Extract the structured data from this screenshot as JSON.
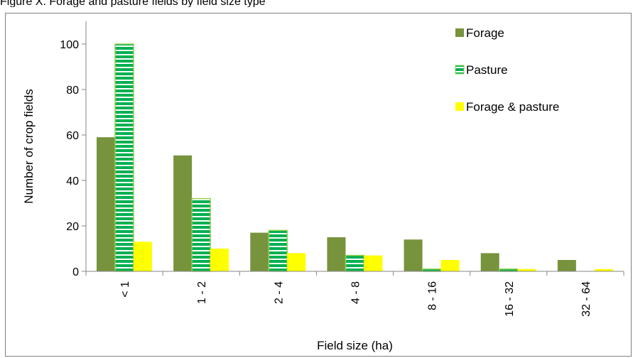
{
  "caption": "Figure X. Forage and pasture fields by field size type",
  "chart_data": {
    "type": "bar",
    "xlabel": "Field size (ha)",
    "ylabel": "Number of crop fields",
    "ylim": [
      0,
      110
    ],
    "yticks": [
      0,
      20,
      40,
      60,
      80,
      100
    ],
    "categories": [
      "< 1",
      "1 - 2",
      "2 - 4",
      "4 - 8",
      "8 - 16",
      "16 - 32",
      "32 - 64"
    ],
    "legend_position": "top-right",
    "grid": false,
    "series": [
      {
        "name": "Forage",
        "color": "#77933c",
        "values": [
          59,
          51,
          17,
          15,
          14,
          8,
          5
        ]
      },
      {
        "name": "Pasture",
        "color": "#00b050",
        "pattern": "horizontal-stripes",
        "border": "#92d050",
        "values": [
          100,
          32,
          18,
          7,
          1,
          1,
          0
        ]
      },
      {
        "name": "Forage & pasture",
        "color": "#ffff00",
        "values": [
          13,
          10,
          8,
          7,
          5,
          1,
          1
        ]
      }
    ]
  }
}
